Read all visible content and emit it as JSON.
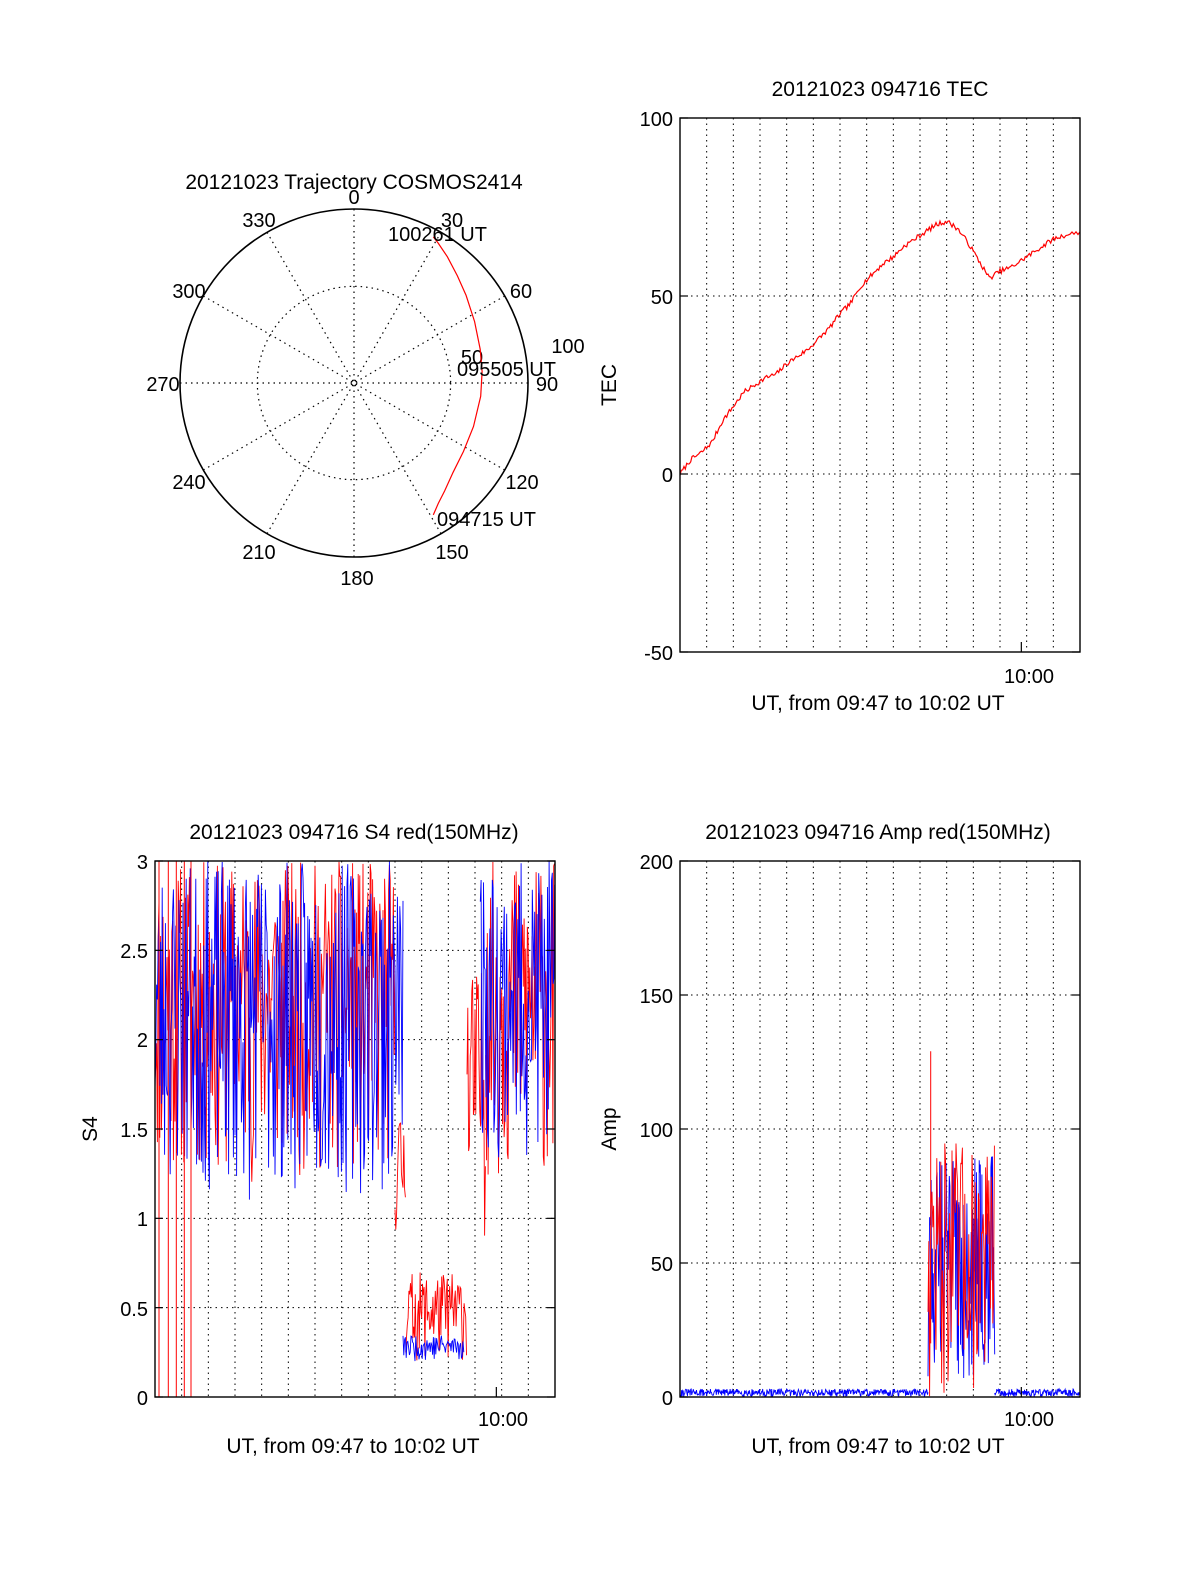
{
  "colors": {
    "red": "#ff0000",
    "blue": "#0000ff",
    "axis": "#000000"
  },
  "chart_data": [
    {
      "type": "polar",
      "title": "20121023 Trajectory COSMOS2414",
      "azimuth_labels": [
        "0",
        "30",
        "60",
        "90",
        "120",
        "150",
        "180",
        "210",
        "240",
        "270",
        "300",
        "330"
      ],
      "radius_labels": [
        "50",
        "100"
      ],
      "grid": true,
      "series": [
        {
          "color": "red",
          "points": [
            [
              149.0,
              79.6
            ],
            [
              145.0,
              76.0
            ],
            [
              140.0,
              72.9
            ],
            [
              132.0,
              69.0
            ],
            [
              122.0,
              66.8
            ],
            [
              110.0,
              65.8
            ],
            [
              96.0,
              65.9
            ],
            [
              85.0,
              66.5
            ],
            [
              75.0,
              67.6
            ],
            [
              63.0,
              70.0
            ],
            [
              52.0,
              73.6
            ],
            [
              44.0,
              77.0
            ],
            [
              36.5,
              81.2
            ],
            [
              31.0,
              84.5
            ],
            [
              28.5,
              86.0
            ]
          ]
        }
      ],
      "annotations": [
        "100261 UT",
        "095505 UT",
        "094715 UT"
      ]
    },
    {
      "type": "line",
      "title": "20121023 094716 TEC",
      "xlabel": "UT, from 09:47 to 10:02 UT",
      "ylabel": "TEC",
      "xlim": [
        0,
        15
      ],
      "ylim": [
        -50,
        100
      ],
      "yticks": [
        "-50",
        "0",
        "50",
        "100"
      ],
      "xticks": [
        {
          "x": 12.8,
          "label": "10:00"
        }
      ],
      "grid": true,
      "series": [
        {
          "color": "red",
          "x": [
            0.0,
            0.4,
            0.8,
            1.2,
            1.6,
            2.0,
            2.4,
            2.8,
            3.2,
            3.6,
            4.0,
            4.4,
            4.8,
            5.2,
            5.6,
            6.0,
            6.4,
            6.8,
            7.2,
            7.6,
            8.0,
            8.4,
            8.8,
            9.2,
            9.6,
            10.0,
            10.4,
            10.8,
            11.2,
            11.6,
            12.0,
            12.4,
            12.8,
            13.2,
            13.6,
            14.0,
            14.4,
            15.0
          ],
          "y": [
            0,
            4,
            6,
            9,
            15,
            19,
            23,
            25,
            27,
            28,
            31,
            33,
            35,
            38,
            41,
            45,
            48,
            53,
            56,
            59,
            61,
            64,
            66,
            68,
            70,
            71,
            69,
            65,
            60,
            55,
            57,
            58,
            60,
            62,
            64,
            66,
            67,
            68
          ]
        }
      ]
    },
    {
      "type": "line",
      "title": "20121023 094716 S4 red(150MHz)",
      "xlabel": "UT, from 09:47 to 10:02 UT",
      "ylabel": "S4",
      "xlim": [
        0,
        15
      ],
      "ylim": [
        0,
        3
      ],
      "yticks": [
        "0",
        "0.5",
        "1",
        "1.5",
        "2",
        "2.5",
        "3"
      ],
      "xticks": [
        {
          "x": 12.8,
          "label": "10:00"
        }
      ],
      "grid": true,
      "series": [
        {
          "color": "red",
          "segments": [
            {
              "x0": 0.0,
              "x1": 9.0,
              "low": 1.2,
              "high": 3.0
            },
            {
              "x0": 9.0,
              "x1": 9.4,
              "low": 0.9,
              "high": 1.6
            },
            {
              "x0": 9.4,
              "x1": 11.7,
              "low": 0.2,
              "high": 0.7
            },
            {
              "x0": 11.7,
              "x1": 12.4,
              "low": 0.9,
              "high": 2.4
            },
            {
              "x0": 12.4,
              "x1": 15.0,
              "low": 1.2,
              "high": 3.0
            }
          ],
          "spikes_to_zero_x": [
            0.15,
            0.5,
            0.8,
            1.1,
            1.35
          ]
        },
        {
          "color": "blue",
          "segments": [
            {
              "x0": 0.0,
              "x1": 9.3,
              "low": 1.1,
              "high": 3.0
            },
            {
              "x0": 9.3,
              "x1": 11.6,
              "low": 0.2,
              "high": 0.35
            },
            {
              "x0": 12.2,
              "x1": 15.0,
              "low": 1.3,
              "high": 3.0
            }
          ]
        }
      ]
    },
    {
      "type": "line",
      "title": "20121023 094716 Amp red(150MHz)",
      "xlabel": "UT, from 09:47 to 10:02 UT",
      "ylabel": "Amp",
      "xlim": [
        0,
        15
      ],
      "ylim": [
        0,
        200
      ],
      "yticks": [
        "0",
        "50",
        "100",
        "150",
        "200"
      ],
      "xticks": [
        {
          "x": 12.8,
          "label": "10:00"
        }
      ],
      "grid": true,
      "series": [
        {
          "color": "blue",
          "segments": [
            {
              "x0": 0.0,
              "x1": 9.3,
              "low": 0,
              "high": 3
            },
            {
              "x0": 9.3,
              "x1": 11.8,
              "low": 5,
              "high": 90
            },
            {
              "x0": 11.8,
              "x1": 15.0,
              "low": 0,
              "high": 3
            }
          ]
        },
        {
          "color": "red",
          "segments": [
            {
              "x0": 9.3,
              "x1": 11.8,
              "low": 0,
              "high": 95
            }
          ],
          "peak": {
            "x": 9.4,
            "y": 129
          }
        }
      ]
    }
  ]
}
